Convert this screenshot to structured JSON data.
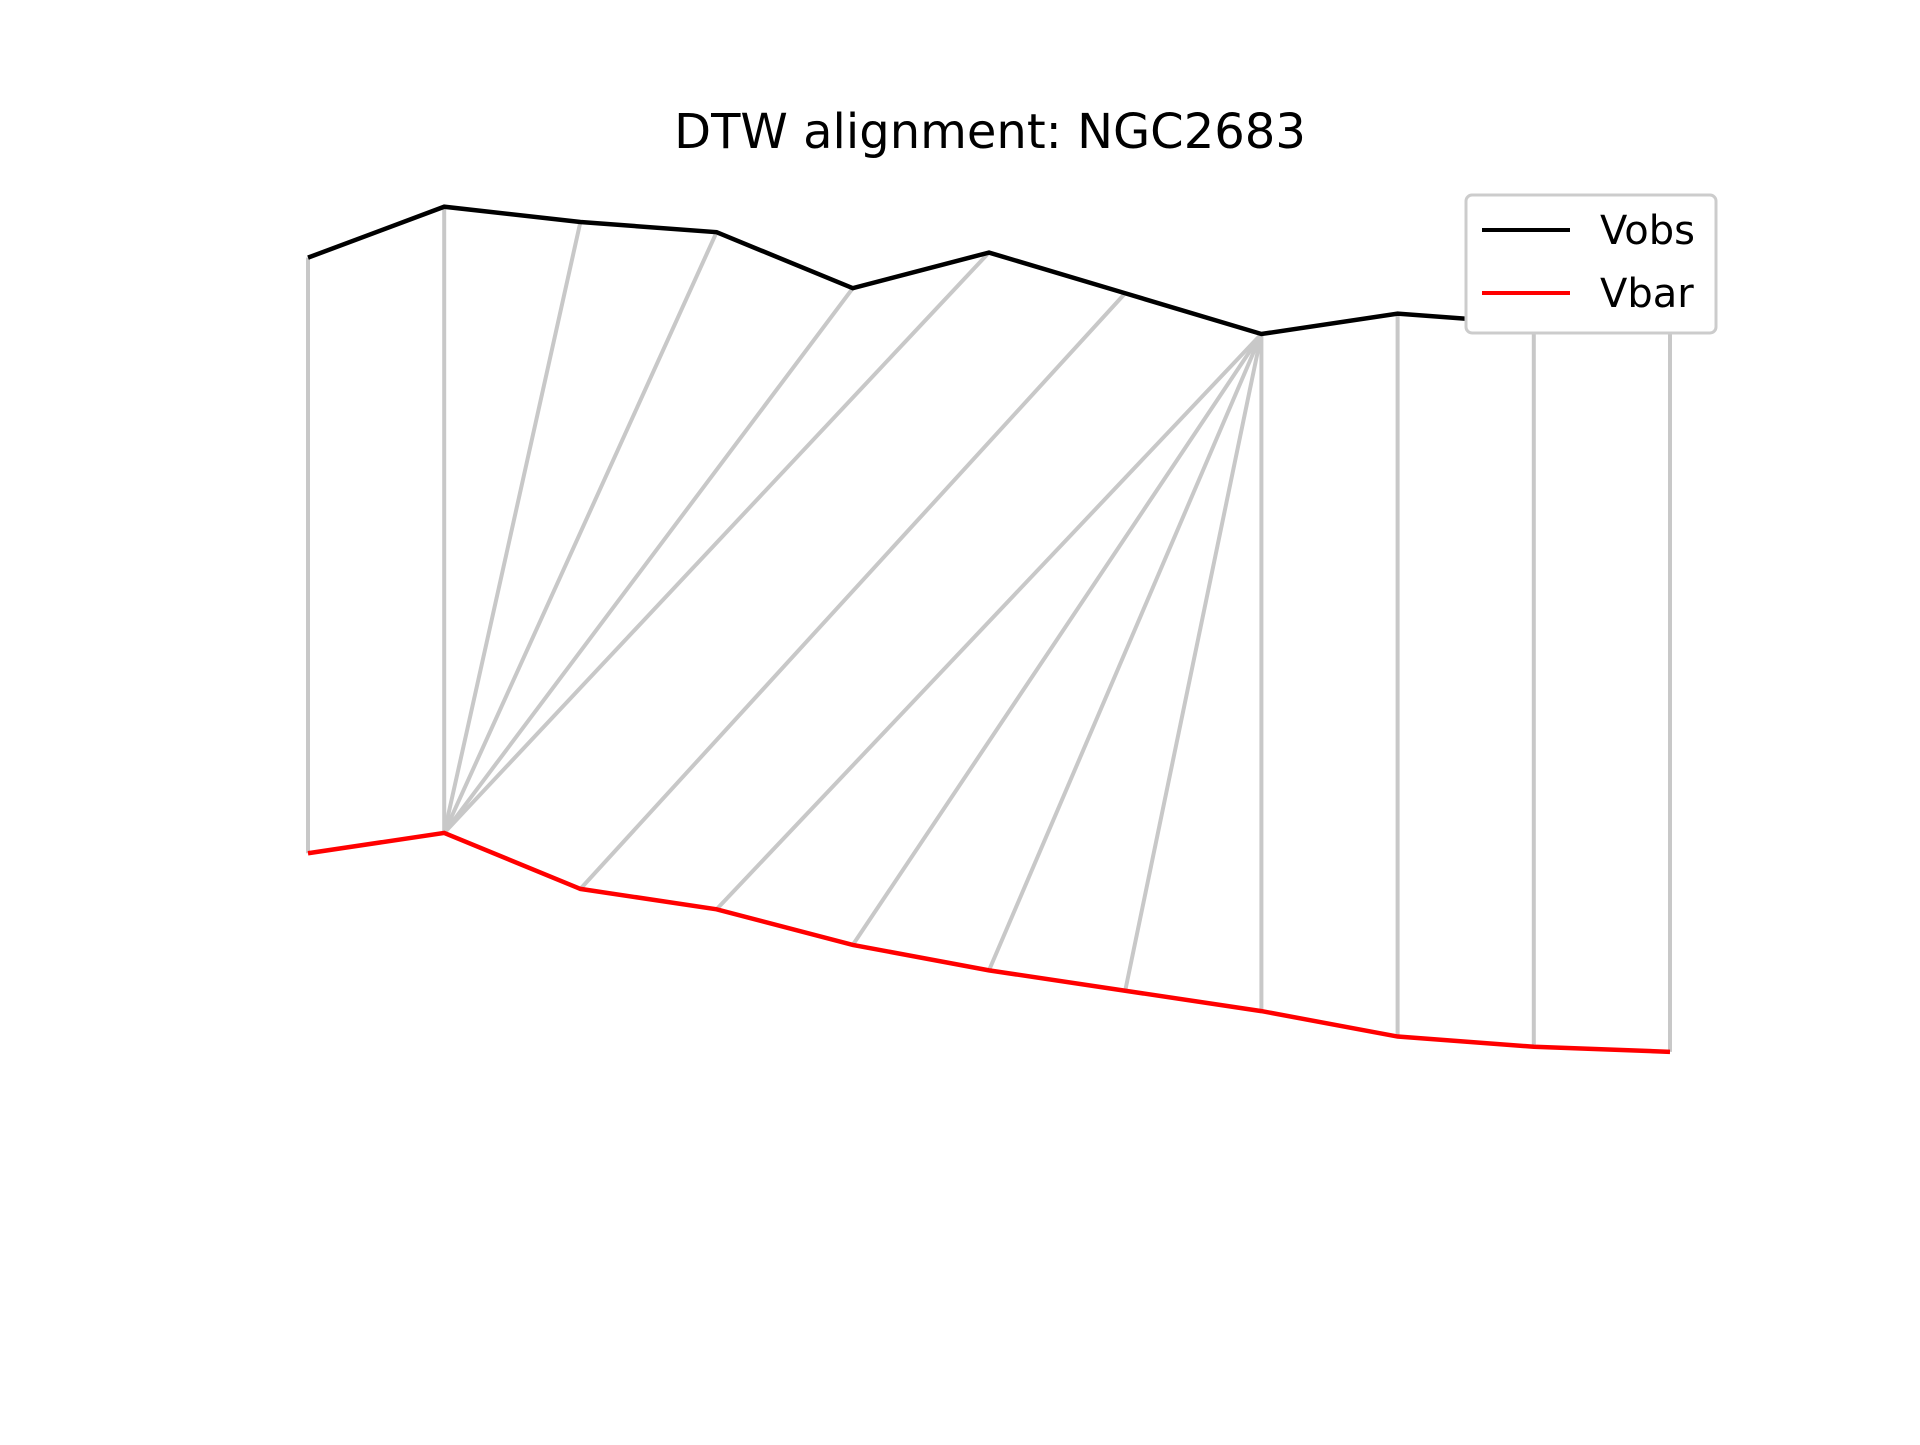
{
  "chart_data": {
    "type": "line",
    "title": "DTW alignment: NGC2683",
    "xlabel": "",
    "ylabel": "",
    "axes_visible": false,
    "grid": false,
    "legend_placement": "top-right",
    "x": [
      0,
      1,
      2,
      3,
      4,
      5,
      6,
      7,
      8,
      9,
      10
    ],
    "ylim": [
      0,
      22
    ],
    "series": [
      {
        "name": "Vobs",
        "color": "#000000",
        "values": [
          20.2,
          21.2,
          20.9,
          20.7,
          19.6,
          20.3,
          19.5,
          18.7,
          19.1,
          18.9,
          18.8
        ]
      },
      {
        "name": "Vbar",
        "color": "#ff0000",
        "values": [
          8.5,
          8.9,
          7.8,
          7.4,
          6.7,
          6.2,
          5.8,
          5.4,
          4.9,
          4.7,
          4.6
        ]
      }
    ],
    "alignment": {
      "color": "#c8c8c8",
      "pairs": [
        [
          0,
          0
        ],
        [
          1,
          1
        ],
        [
          2,
          1
        ],
        [
          3,
          1
        ],
        [
          4,
          1
        ],
        [
          5,
          1
        ],
        [
          6,
          2
        ],
        [
          7,
          3
        ],
        [
          7,
          4
        ],
        [
          7,
          5
        ],
        [
          7,
          6
        ],
        [
          7,
          7
        ],
        [
          8,
          8
        ],
        [
          9,
          9
        ],
        [
          10,
          10
        ]
      ]
    }
  }
}
